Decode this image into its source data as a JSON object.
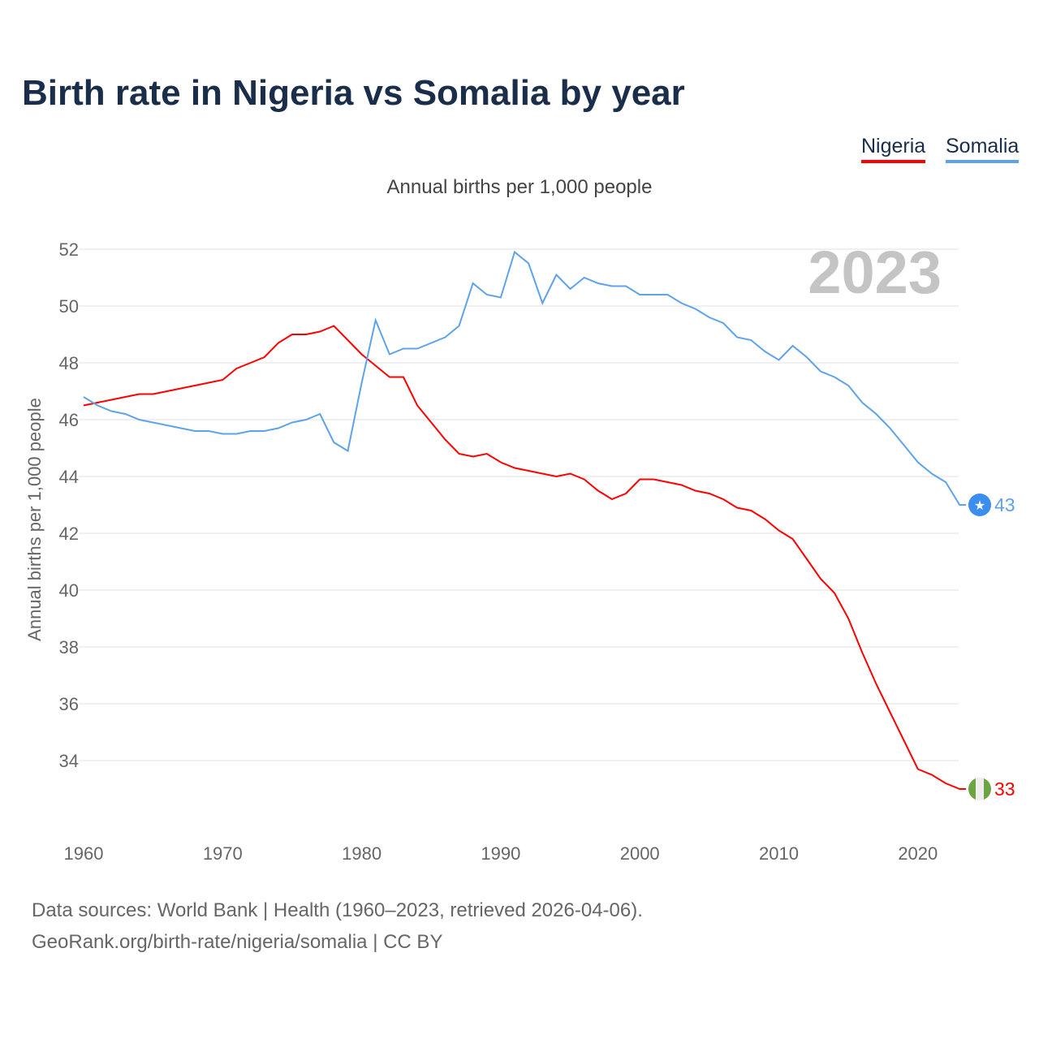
{
  "chart_data": {
    "type": "line",
    "title": "Birth rate in Nigeria vs Somalia by year",
    "subtitle": "Annual births per 1,000 people",
    "ylabel": "Annual births per 1,000 people",
    "xlabel": "",
    "year_watermark": "2023",
    "ylim": [
      32,
      52.5
    ],
    "xlim": [
      1960,
      2023
    ],
    "yticks": [
      34,
      36,
      38,
      40,
      42,
      44,
      46,
      48,
      50,
      52
    ],
    "xticks": [
      1960,
      1970,
      1980,
      1990,
      2000,
      2010,
      2020
    ],
    "grid": true,
    "legend_placement": "top-right",
    "x": [
      1960,
      1961,
      1962,
      1963,
      1964,
      1965,
      1966,
      1967,
      1968,
      1969,
      1970,
      1971,
      1972,
      1973,
      1974,
      1975,
      1976,
      1977,
      1978,
      1979,
      1980,
      1981,
      1982,
      1983,
      1984,
      1985,
      1986,
      1987,
      1988,
      1989,
      1990,
      1991,
      1992,
      1993,
      1994,
      1995,
      1996,
      1997,
      1998,
      1999,
      2000,
      2001,
      2002,
      2003,
      2004,
      2005,
      2006,
      2007,
      2008,
      2009,
      2010,
      2011,
      2012,
      2013,
      2014,
      2015,
      2016,
      2017,
      2018,
      2019,
      2020,
      2021,
      2022,
      2023
    ],
    "series": [
      {
        "name": "Nigeria",
        "color": "#ff0000",
        "end_label": "33",
        "values": [
          46.5,
          46.6,
          46.7,
          46.8,
          46.9,
          46.9,
          47.0,
          47.1,
          47.2,
          47.3,
          47.4,
          47.8,
          48.0,
          48.2,
          48.7,
          49.0,
          49.0,
          49.1,
          49.3,
          48.8,
          48.3,
          47.9,
          47.5,
          47.5,
          46.5,
          45.9,
          45.3,
          44.8,
          44.7,
          44.8,
          44.5,
          44.3,
          44.2,
          44.1,
          44.0,
          44.1,
          43.9,
          43.5,
          43.2,
          43.4,
          43.9,
          43.9,
          43.8,
          43.7,
          43.5,
          43.4,
          43.2,
          42.9,
          42.8,
          42.5,
          42.1,
          41.8,
          41.1,
          40.4,
          39.9,
          39.0,
          37.8,
          36.7,
          35.7,
          34.7,
          33.7,
          33.5,
          33.2,
          33.0
        ]
      },
      {
        "name": "Somalia",
        "color": "#5ea3ea",
        "end_label": "43",
        "values": [
          46.8,
          46.5,
          46.3,
          46.2,
          46.0,
          45.9,
          45.8,
          45.7,
          45.6,
          45.6,
          45.5,
          45.5,
          45.6,
          45.6,
          45.7,
          45.9,
          46.0,
          46.2,
          45.2,
          44.9,
          47.3,
          49.5,
          48.3,
          48.5,
          48.5,
          48.7,
          48.9,
          49.3,
          50.8,
          50.4,
          50.3,
          51.9,
          51.5,
          50.1,
          51.1,
          50.6,
          51.0,
          50.8,
          50.7,
          50.7,
          50.4,
          50.4,
          50.4,
          50.1,
          49.9,
          49.6,
          49.4,
          48.9,
          48.8,
          48.4,
          48.1,
          48.6,
          48.2,
          47.7,
          47.5,
          47.2,
          46.6,
          46.2,
          45.7,
          45.1,
          44.5,
          44.1,
          43.8,
          43.0
        ]
      }
    ]
  },
  "footer": {
    "source": "Data sources: World Bank | Health (1960–2023, retrieved 2026-04-06).",
    "credit": "GeoRank.org/birth-rate/nigeria/somalia | CC BY"
  }
}
